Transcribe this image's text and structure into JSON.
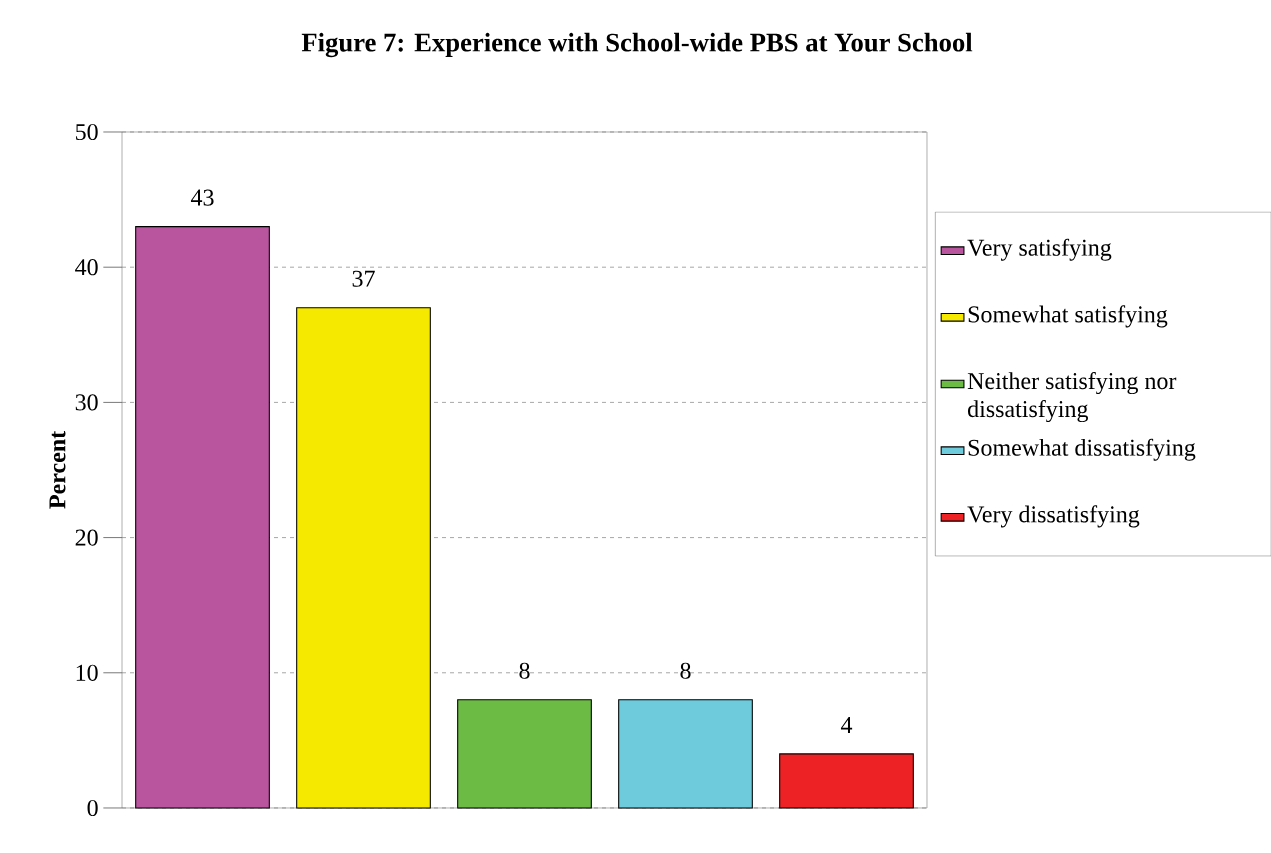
{
  "chart_data": {
    "type": "bar",
    "title": "Figure 7: Experience with School-wide PBS at Your School",
    "ylabel": "Percent",
    "categories": [
      null,
      null,
      null,
      null,
      null
    ],
    "series": [
      {
        "name": "Very satisfying",
        "color": "#b9559f",
        "values": [
          43,
          null,
          null,
          null,
          null
        ]
      },
      {
        "name": "Somewhat satisfying",
        "color": "#f5e900",
        "values": [
          null,
          37,
          null,
          null,
          null
        ]
      },
      {
        "name": "Neither satisfying nor dissatisfying",
        "color": "#6cbb45",
        "values": [
          null,
          null,
          8,
          null,
          null
        ]
      },
      {
        "name": "Somewhat dissatisfying",
        "color": "#6ecbdb",
        "values": [
          null,
          null,
          null,
          8,
          null
        ]
      },
      {
        "name": "Very dissatisfying",
        "color": "#ed2224",
        "values": [
          null,
          null,
          null,
          null,
          4
        ]
      }
    ],
    "ylim": [
      0,
      50
    ],
    "yticks": [
      0,
      10,
      20,
      30,
      40,
      50
    ],
    "grid": "y",
    "legend": "right",
    "tick_labels": "y",
    "data_labels": true
  }
}
